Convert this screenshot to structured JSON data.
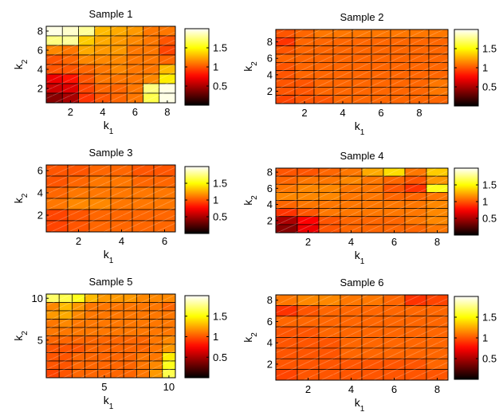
{
  "colormap": "hot",
  "clim": [
    0,
    2
  ],
  "colorbar_ticks": [
    0.5,
    1,
    1.5
  ],
  "colorbar_tick_labels": [
    "0.5",
    "1",
    "1.5"
  ],
  "chart_data": [
    {
      "type": "heatmap",
      "title": "Sample 1",
      "xlabel": "k",
      "xlabel_sub": "1",
      "ylabel": "k",
      "ylabel_sub": "2",
      "n": 8,
      "xticks": [
        2,
        4,
        6,
        8
      ],
      "yticks": [
        2,
        4,
        6,
        8
      ],
      "values": [
        [
          1.95,
          1.9,
          1.8,
          1.3,
          1.25,
          1.2,
          1.1,
          1.1
        ],
        [
          1.75,
          1.8,
          1.35,
          1.25,
          1.2,
          1.15,
          1.1,
          1.0
        ],
        [
          1.15,
          1.1,
          1.25,
          1.2,
          1.2,
          1.1,
          1.1,
          0.95
        ],
        [
          1.0,
          1.05,
          1.15,
          1.15,
          1.15,
          1.1,
          1.1,
          1.05
        ],
        [
          1.0,
          1.0,
          1.05,
          1.1,
          1.15,
          1.1,
          1.1,
          1.3
        ],
        [
          0.7,
          0.8,
          1.0,
          1.1,
          1.1,
          1.1,
          1.15,
          1.45
        ],
        [
          0.6,
          0.65,
          0.95,
          1.05,
          1.05,
          1.1,
          1.75,
          1.95
        ],
        [
          0.4,
          0.5,
          0.9,
          1.0,
          1.05,
          1.1,
          1.65,
          1.95
        ]
      ]
    },
    {
      "type": "heatmap",
      "title": "Sample 2",
      "xlabel": "k",
      "xlabel_sub": "1",
      "ylabel": "k",
      "ylabel_sub": "2",
      "n": 9,
      "xticks": [
        2,
        4,
        6,
        8
      ],
      "yticks": [
        2,
        4,
        6,
        8
      ],
      "values": [
        [
          1.0,
          1.05,
          1.1,
          1.1,
          1.1,
          1.1,
          1.1,
          1.1,
          1.1
        ],
        [
          0.9,
          1.05,
          1.05,
          1.05,
          1.05,
          1.05,
          1.05,
          1.05,
          1.05
        ],
        [
          1.0,
          1.05,
          1.05,
          1.05,
          1.05,
          1.05,
          1.05,
          1.05,
          1.05
        ],
        [
          1.05,
          1.05,
          1.05,
          1.05,
          1.05,
          1.05,
          1.05,
          1.05,
          1.05
        ],
        [
          1.0,
          1.05,
          1.05,
          1.05,
          1.05,
          1.05,
          1.05,
          1.05,
          1.05
        ],
        [
          1.0,
          1.05,
          1.05,
          1.05,
          1.05,
          1.05,
          1.05,
          1.05,
          1.05
        ],
        [
          1.0,
          1.0,
          1.05,
          1.05,
          1.05,
          1.05,
          1.05,
          1.05,
          1.1
        ],
        [
          1.0,
          1.0,
          1.05,
          1.05,
          1.05,
          1.05,
          1.05,
          1.05,
          1.1
        ],
        [
          0.95,
          1.0,
          1.0,
          1.05,
          1.05,
          1.05,
          1.05,
          1.05,
          1.05
        ]
      ]
    },
    {
      "type": "heatmap",
      "title": "Sample 3",
      "xlabel": "k",
      "xlabel_sub": "1",
      "ylabel": "k",
      "ylabel_sub": "2",
      "n": 6,
      "xticks": [
        2,
        4,
        6
      ],
      "yticks": [
        2,
        4,
        6
      ],
      "values": [
        [
          1.0,
          1.0,
          1.05,
          1.05,
          1.0,
          1.0
        ],
        [
          1.0,
          1.05,
          1.1,
          1.1,
          1.05,
          1.05
        ],
        [
          1.05,
          1.1,
          1.1,
          1.1,
          1.1,
          1.1
        ],
        [
          1.1,
          1.15,
          1.15,
          1.1,
          1.1,
          1.1
        ],
        [
          0.95,
          1.0,
          1.05,
          1.05,
          1.05,
          1.05
        ],
        [
          0.95,
          1.0,
          1.05,
          1.05,
          1.05,
          1.05
        ]
      ]
    },
    {
      "type": "heatmap",
      "title": "Sample 4",
      "xlabel": "k",
      "xlabel_sub": "1",
      "ylabel": "k",
      "ylabel_sub": "2",
      "n": 8,
      "xticks": [
        2,
        4,
        6,
        8
      ],
      "yticks": [
        2,
        4,
        6,
        8
      ],
      "values": [
        [
          1.0,
          1.0,
          1.05,
          1.1,
          1.25,
          1.4,
          1.1,
          1.35
        ],
        [
          1.05,
          1.1,
          1.1,
          1.15,
          1.1,
          1.05,
          1.0,
          1.2
        ],
        [
          1.1,
          1.15,
          1.15,
          1.1,
          1.1,
          1.0,
          0.9,
          1.55
        ],
        [
          1.15,
          1.15,
          1.15,
          1.1,
          1.1,
          1.05,
          1.05,
          1.1
        ],
        [
          1.05,
          1.1,
          1.1,
          1.1,
          1.1,
          1.1,
          1.1,
          1.15
        ],
        [
          0.9,
          1.0,
          1.1,
          1.1,
          1.1,
          1.1,
          1.1,
          1.15
        ],
        [
          0.5,
          0.75,
          1.0,
          1.05,
          1.05,
          1.05,
          1.1,
          1.15
        ],
        [
          0.4,
          0.7,
          1.0,
          1.05,
          1.05,
          1.05,
          1.05,
          1.1
        ]
      ]
    },
    {
      "type": "heatmap",
      "title": "Sample 5",
      "xlabel": "k",
      "xlabel_sub": "1",
      "ylabel": "k",
      "ylabel_sub": "2",
      "n": 10,
      "xticks": [
        5,
        10
      ],
      "yticks": [
        5,
        10
      ],
      "values": [
        [
          1.7,
          1.65,
          1.55,
          1.3,
          1.2,
          1.2,
          1.2,
          1.15,
          1.15,
          1.15
        ],
        [
          1.15,
          1.3,
          1.2,
          1.1,
          1.1,
          1.1,
          1.1,
          1.1,
          1.1,
          1.05
        ],
        [
          1.2,
          1.25,
          1.15,
          1.1,
          1.1,
          1.1,
          1.1,
          1.1,
          1.1,
          1.1
        ],
        [
          1.1,
          1.15,
          1.1,
          1.1,
          1.1,
          1.1,
          1.1,
          1.1,
          1.1,
          1.1
        ],
        [
          1.1,
          1.1,
          1.1,
          1.1,
          1.1,
          1.1,
          1.1,
          1.1,
          1.1,
          1.1
        ],
        [
          1.05,
          1.05,
          1.05,
          1.05,
          1.05,
          1.05,
          1.05,
          1.05,
          1.1,
          1.15
        ],
        [
          1.0,
          1.0,
          1.0,
          1.05,
          1.05,
          1.05,
          1.05,
          1.05,
          1.1,
          1.2
        ],
        [
          1.0,
          1.0,
          1.05,
          1.05,
          1.05,
          1.05,
          1.05,
          1.1,
          1.1,
          1.45
        ],
        [
          1.0,
          1.0,
          1.05,
          1.05,
          1.05,
          1.05,
          1.05,
          1.1,
          1.15,
          1.55
        ],
        [
          0.95,
          1.0,
          1.05,
          1.05,
          1.05,
          1.05,
          1.05,
          1.1,
          1.2,
          1.65
        ]
      ]
    },
    {
      "type": "heatmap",
      "title": "Sample 6",
      "xlabel": "k",
      "xlabel_sub": "1",
      "ylabel": "k",
      "ylabel_sub": "2",
      "n": 8,
      "xticks": [
        2,
        4,
        6,
        8
      ],
      "yticks": [
        2,
        4,
        6,
        8
      ],
      "values": [
        [
          1.1,
          1.15,
          1.15,
          1.1,
          1.1,
          1.05,
          0.9,
          0.95
        ],
        [
          0.9,
          1.0,
          1.05,
          1.05,
          1.05,
          1.05,
          1.05,
          1.05
        ],
        [
          1.05,
          1.05,
          1.05,
          1.05,
          1.05,
          1.05,
          1.05,
          1.05
        ],
        [
          1.0,
          1.0,
          1.05,
          1.05,
          1.05,
          1.05,
          1.05,
          1.05
        ],
        [
          1.0,
          1.0,
          1.0,
          1.05,
          1.05,
          1.05,
          1.05,
          1.05
        ],
        [
          1.0,
          1.0,
          1.0,
          1.05,
          1.05,
          1.05,
          1.05,
          1.05
        ],
        [
          1.0,
          1.0,
          1.0,
          1.0,
          1.0,
          1.0,
          1.0,
          1.05
        ],
        [
          0.95,
          1.0,
          1.0,
          1.0,
          1.0,
          1.0,
          1.0,
          1.0
        ]
      ]
    }
  ]
}
